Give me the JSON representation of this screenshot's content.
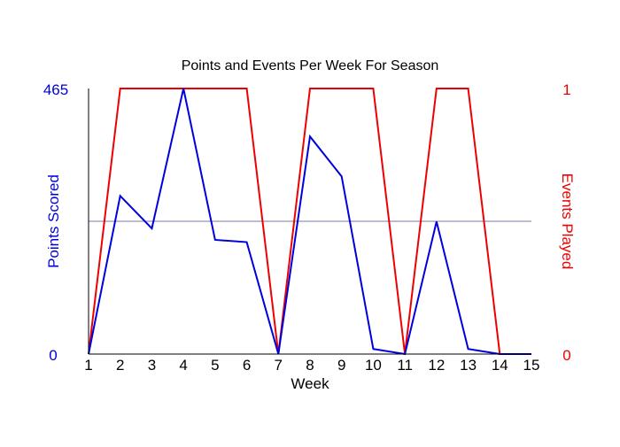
{
  "chart_data": {
    "type": "line",
    "title": "Points and Events Per Week For Season",
    "xlabel": "Week",
    "ylabel_left": "Points Scored",
    "ylabel_right": "Events Played",
    "x": [
      1,
      2,
      3,
      4,
      5,
      6,
      7,
      8,
      9,
      10,
      11,
      12,
      13,
      14,
      15
    ],
    "x_tick_labels": [
      "1",
      "2",
      "3",
      "4",
      "5",
      "6",
      "7",
      "8",
      "9",
      "10",
      "11",
      "12",
      "13",
      "14",
      "15"
    ],
    "ylim_left": [
      0,
      465
    ],
    "ylim_right": [
      0,
      1
    ],
    "y_left_tick_labels": [
      "0",
      "465"
    ],
    "y_right_tick_labels": [
      "0",
      "1"
    ],
    "grid": "single horizontal midline",
    "series": [
      {
        "name": "Points Scored",
        "axis": "left",
        "color": "#0000dd",
        "values": [
          0,
          277,
          220,
          465,
          200,
          196,
          0,
          381,
          311,
          9,
          0,
          232,
          9,
          0,
          0
        ]
      },
      {
        "name": "Events Played",
        "axis": "right",
        "color": "#ee0000",
        "values": [
          0,
          1,
          1,
          1,
          1,
          1,
          0,
          1,
          1,
          1,
          0,
          1,
          1,
          0,
          0
        ]
      }
    ]
  }
}
